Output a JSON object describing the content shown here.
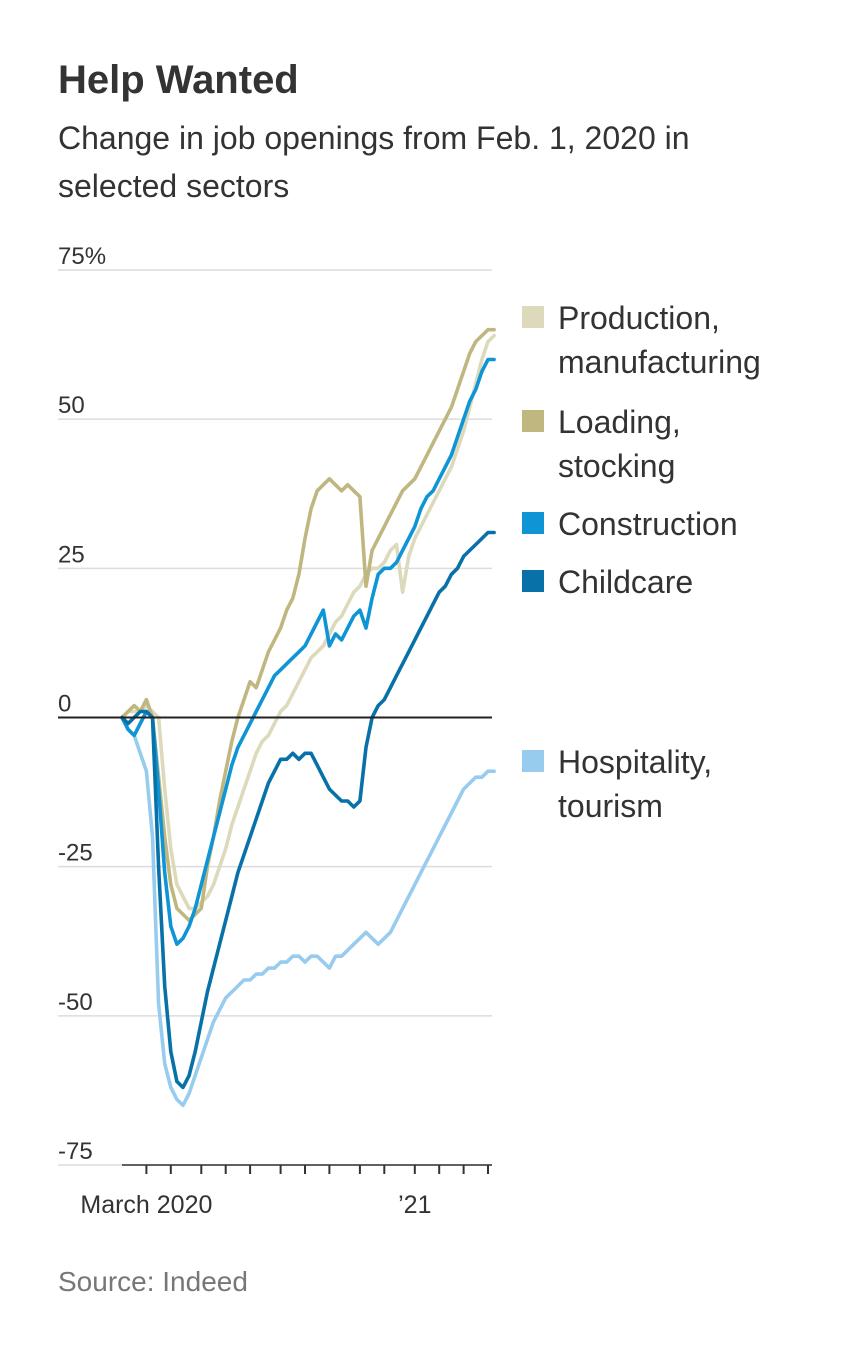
{
  "title": "Help Wanted",
  "subtitle": "Change in job openings from Feb. 1, 2020 in selected sectors",
  "source": "Source: Indeed",
  "chart_data": {
    "type": "line",
    "ylim": [
      -75,
      75
    ],
    "yticks": [
      {
        "value": 75,
        "label": "75%"
      },
      {
        "value": 50,
        "label": "50"
      },
      {
        "value": 25,
        "label": "25"
      },
      {
        "value": 0,
        "label": "0"
      },
      {
        "value": -25,
        "label": "-25"
      },
      {
        "value": -50,
        "label": "-50"
      },
      {
        "value": -75,
        "label": "-75"
      }
    ],
    "x_unit": "weeks since Feb. 1, 2020",
    "xlim": [
      0,
      60
    ],
    "xticks": [
      4,
      8,
      13,
      17,
      21,
      26,
      30,
      34,
      39,
      43,
      48,
      52,
      56,
      60
    ],
    "xlabels": [
      {
        "x": 4,
        "label": "March 2020"
      },
      {
        "x": 48,
        "label": "’21"
      }
    ],
    "series": [
      {
        "name": "Production, manufacturing",
        "color": "#ddd9bb",
        "x": [
          0,
          1,
          2,
          3,
          4,
          5,
          6,
          7,
          8,
          9,
          10,
          11,
          12,
          13,
          14,
          15,
          16,
          17,
          18,
          19,
          20,
          21,
          22,
          23,
          24,
          25,
          26,
          27,
          28,
          29,
          30,
          31,
          32,
          33,
          34,
          35,
          36,
          37,
          38,
          39,
          40,
          41,
          42,
          43,
          44,
          45,
          46,
          47,
          48,
          49,
          50,
          51,
          52,
          53,
          54,
          55,
          56,
          57,
          58,
          59,
          60,
          61
        ],
        "values": [
          0,
          1,
          1,
          1,
          2,
          1,
          0,
          -12,
          -22,
          -28,
          -30,
          -32,
          -32,
          -31,
          -30,
          -28,
          -25,
          -22,
          -18,
          -15,
          -12,
          -9,
          -6,
          -4,
          -3,
          -1,
          1,
          2,
          4,
          6,
          8,
          10,
          11,
          12,
          14,
          16,
          17,
          19,
          21,
          22,
          24,
          25,
          25,
          26,
          28,
          29,
          21,
          27,
          30,
          32,
          34,
          36,
          38,
          40,
          42,
          45,
          48,
          52,
          56,
          60,
          63,
          64
        ]
      },
      {
        "name": "Loading, stocking",
        "color": "#bfb77f",
        "x": [
          0,
          1,
          2,
          3,
          4,
          5,
          6,
          7,
          8,
          9,
          10,
          11,
          12,
          13,
          14,
          15,
          16,
          17,
          18,
          19,
          20,
          21,
          22,
          23,
          24,
          25,
          26,
          27,
          28,
          29,
          30,
          31,
          32,
          33,
          34,
          35,
          36,
          37,
          38,
          39,
          40,
          41,
          42,
          43,
          44,
          45,
          46,
          47,
          48,
          49,
          50,
          51,
          52,
          53,
          54,
          55,
          56,
          57,
          58,
          59,
          60,
          61
        ],
        "values": [
          0,
          1,
          2,
          1,
          3,
          0,
          -10,
          -20,
          -28,
          -32,
          -33,
          -34,
          -33,
          -32,
          -25,
          -20,
          -14,
          -9,
          -4,
          0,
          3,
          6,
          5,
          8,
          11,
          13,
          15,
          18,
          20,
          24,
          30,
          35,
          38,
          39,
          40,
          39,
          38,
          39,
          38,
          37,
          22,
          28,
          30,
          32,
          34,
          36,
          38,
          39,
          40,
          42,
          44,
          46,
          48,
          50,
          52,
          55,
          58,
          61,
          63,
          64,
          65,
          65
        ]
      },
      {
        "name": "Construction",
        "color": "#0f95d6",
        "x": [
          0,
          1,
          2,
          3,
          4,
          5,
          6,
          7,
          8,
          9,
          10,
          11,
          12,
          13,
          14,
          15,
          16,
          17,
          18,
          19,
          20,
          21,
          22,
          23,
          24,
          25,
          26,
          27,
          28,
          29,
          30,
          31,
          32,
          33,
          34,
          35,
          36,
          37,
          38,
          39,
          40,
          41,
          42,
          43,
          44,
          45,
          46,
          47,
          48,
          49,
          50,
          51,
          52,
          53,
          54,
          55,
          56,
          57,
          58,
          59,
          60,
          61
        ],
        "values": [
          0,
          -2,
          -3,
          -1,
          1,
          0,
          -12,
          -26,
          -35,
          -38,
          -37,
          -35,
          -32,
          -28,
          -24,
          -20,
          -16,
          -12,
          -8,
          -5,
          -3,
          -1,
          1,
          3,
          5,
          7,
          8,
          9,
          10,
          11,
          12,
          14,
          16,
          18,
          12,
          14,
          13,
          15,
          17,
          18,
          15,
          20,
          24,
          25,
          25,
          26,
          28,
          30,
          32,
          35,
          37,
          38,
          40,
          42,
          44,
          47,
          50,
          53,
          55,
          58,
          60,
          60
        ]
      },
      {
        "name": "Childcare",
        "color": "#0871a8",
        "x": [
          0,
          1,
          2,
          3,
          4,
          5,
          6,
          7,
          8,
          9,
          10,
          11,
          12,
          13,
          14,
          15,
          16,
          17,
          18,
          19,
          20,
          21,
          22,
          23,
          24,
          25,
          26,
          27,
          28,
          29,
          30,
          31,
          32,
          33,
          34,
          35,
          36,
          37,
          38,
          39,
          40,
          41,
          42,
          43,
          44,
          45,
          46,
          47,
          48,
          49,
          50,
          51,
          52,
          53,
          54,
          55,
          56,
          57,
          58,
          59,
          60,
          61
        ],
        "values": [
          0,
          -1,
          0,
          1,
          1,
          0,
          -25,
          -45,
          -56,
          -61,
          -62,
          -60,
          -56,
          -51,
          -46,
          -42,
          -38,
          -34,
          -30,
          -26,
          -23,
          -20,
          -17,
          -14,
          -11,
          -9,
          -7,
          -7,
          -6,
          -7,
          -6,
          -6,
          -8,
          -10,
          -12,
          -13,
          -14,
          -14,
          -15,
          -14,
          -5,
          0,
          2,
          3,
          5,
          7,
          9,
          11,
          13,
          15,
          17,
          19,
          21,
          22,
          24,
          25,
          27,
          28,
          29,
          30,
          31,
          31
        ]
      },
      {
        "name": "Hospitality, tourism",
        "color": "#98ccef",
        "x": [
          0,
          1,
          2,
          3,
          4,
          5,
          6,
          7,
          8,
          9,
          10,
          11,
          12,
          13,
          14,
          15,
          16,
          17,
          18,
          19,
          20,
          21,
          22,
          23,
          24,
          25,
          26,
          27,
          28,
          29,
          30,
          31,
          32,
          33,
          34,
          35,
          36,
          37,
          38,
          39,
          40,
          41,
          42,
          43,
          44,
          45,
          46,
          47,
          48,
          49,
          50,
          51,
          52,
          53,
          54,
          55,
          56,
          57,
          58,
          59,
          60,
          61
        ],
        "values": [
          0,
          -2,
          -3,
          -6,
          -9,
          -20,
          -48,
          -58,
          -62,
          -64,
          -65,
          -63,
          -60,
          -57,
          -54,
          -51,
          -49,
          -47,
          -46,
          -45,
          -44,
          -44,
          -43,
          -43,
          -42,
          -42,
          -41,
          -41,
          -40,
          -40,
          -41,
          -40,
          -40,
          -41,
          -42,
          -40,
          -40,
          -39,
          -38,
          -37,
          -36,
          -37,
          -38,
          -37,
          -36,
          -34,
          -32,
          -30,
          -28,
          -26,
          -24,
          -22,
          -20,
          -18,
          -16,
          -14,
          -12,
          -11,
          -10,
          -10,
          -9,
          -9
        ]
      }
    ]
  }
}
